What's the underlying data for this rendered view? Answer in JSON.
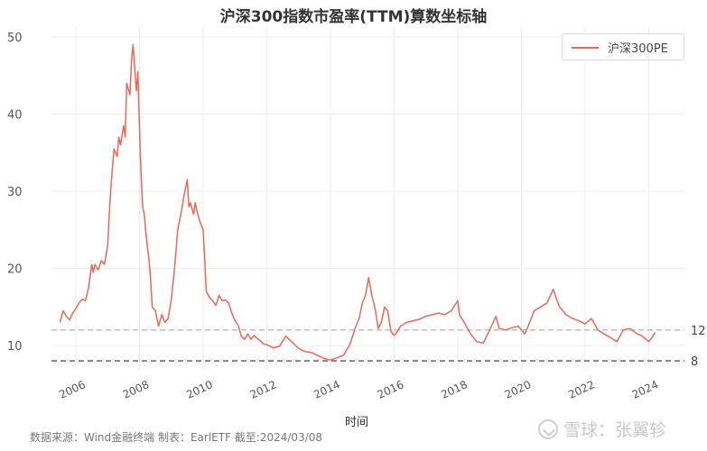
{
  "title": "沪深300指数市盈率(TTM)算数坐标轴",
  "legend": {
    "label": "沪深300PE",
    "color": "#e8695a"
  },
  "footer": "数据来源：Wind金融终端 制表：EarlETF 截至:2024/03/08",
  "watermark": "雪球：张翼轸",
  "chart_data": {
    "type": "line",
    "title": "沪深300指数市盈率(TTM)算数坐标轴",
    "xlabel": "时间",
    "ylabel": "",
    "ylim": [
      6.8,
      51
    ],
    "xlim": [
      2005.3,
      2025.2
    ],
    "yticks": [
      10,
      20,
      30,
      40,
      50
    ],
    "xticks": [
      "2006",
      "2008",
      "2010",
      "2012",
      "2014",
      "2016",
      "2018",
      "2020",
      "2022",
      "2024"
    ],
    "grid": true,
    "legend_position": "upper right",
    "reference_lines": [
      {
        "value": 12,
        "label": "12",
        "style": "dashed",
        "color": "#b0b0b0"
      },
      {
        "value": 8,
        "label": "8",
        "style": "dashed",
        "color": "#707070"
      }
    ],
    "series": [
      {
        "name": "沪深300PE",
        "color": "#e8695a",
        "x": [
          2005.5,
          2005.6,
          2005.7,
          2005.8,
          2005.9,
          2006.0,
          2006.1,
          2006.2,
          2006.3,
          2006.4,
          2006.5,
          2006.55,
          2006.6,
          2006.7,
          2006.8,
          2006.9,
          2007.0,
          2007.05,
          2007.1,
          2007.15,
          2007.2,
          2007.3,
          2007.35,
          2007.4,
          2007.5,
          2007.55,
          2007.6,
          2007.7,
          2007.75,
          2007.8,
          2007.85,
          2007.9,
          2007.95,
          2008.0,
          2008.05,
          2008.1,
          2008.15,
          2008.2,
          2008.3,
          2008.35,
          2008.4,
          2008.5,
          2008.6,
          2008.7,
          2008.8,
          2008.9,
          2009.0,
          2009.1,
          2009.2,
          2009.3,
          2009.4,
          2009.5,
          2009.55,
          2009.6,
          2009.7,
          2009.75,
          2009.8,
          2009.9,
          2010.0,
          2010.1,
          2010.2,
          2010.3,
          2010.4,
          2010.5,
          2010.6,
          2010.7,
          2010.8,
          2010.9,
          2011.0,
          2011.1,
          2011.2,
          2011.3,
          2011.4,
          2011.5,
          2011.6,
          2011.7,
          2011.8,
          2011.9,
          2012.0,
          2012.2,
          2012.4,
          2012.6,
          2012.8,
          2013.0,
          2013.2,
          2013.4,
          2013.6,
          2013.8,
          2014.0,
          2014.2,
          2014.4,
          2014.6,
          2014.8,
          2014.9,
          2015.0,
          2015.1,
          2015.2,
          2015.3,
          2015.4,
          2015.45,
          2015.5,
          2015.6,
          2015.7,
          2015.8,
          2015.9,
          2016.0,
          2016.1,
          2016.2,
          2016.4,
          2016.6,
          2016.8,
          2017.0,
          2017.2,
          2017.4,
          2017.6,
          2017.8,
          2018.0,
          2018.05,
          2018.2,
          2018.4,
          2018.6,
          2018.8,
          2019.0,
          2019.2,
          2019.3,
          2019.5,
          2019.7,
          2019.9,
          2020.1,
          2020.2,
          2020.4,
          2020.6,
          2020.8,
          2021.0,
          2021.1,
          2021.2,
          2021.4,
          2021.6,
          2021.8,
          2022.0,
          2022.2,
          2022.4,
          2022.6,
          2022.8,
          2023.0,
          2023.2,
          2023.4,
          2023.6,
          2023.8,
          2024.0,
          2024.1,
          2024.2
        ],
        "values": [
          13.0,
          14.5,
          13.8,
          13.3,
          14.2,
          14.8,
          15.5,
          16.0,
          15.8,
          17.5,
          20.5,
          19.5,
          20.5,
          19.8,
          21.0,
          20.5,
          23.0,
          27.0,
          30.5,
          33.0,
          35.5,
          34.5,
          37.0,
          36.0,
          38.5,
          37.0,
          44.0,
          42.5,
          47.0,
          49.0,
          46.0,
          43.0,
          45.5,
          38.0,
          32.0,
          28.0,
          27.0,
          24.5,
          21.0,
          18.5,
          15.0,
          14.5,
          12.5,
          14.0,
          13.0,
          13.5,
          16.0,
          20.0,
          25.0,
          27.0,
          29.5,
          31.5,
          28.0,
          28.5,
          27.0,
          28.5,
          27.5,
          26.0,
          25.0,
          17.0,
          16.2,
          15.8,
          15.2,
          16.5,
          15.8,
          15.9,
          15.5,
          14.2,
          13.2,
          12.6,
          11.2,
          10.8,
          11.5,
          10.8,
          11.3,
          10.9,
          10.6,
          10.2,
          10.1,
          9.7,
          9.9,
          11.2,
          10.4,
          9.6,
          9.2,
          9.1,
          8.7,
          8.3,
          8.1,
          8.4,
          8.7,
          10.0,
          12.5,
          13.5,
          15.5,
          16.5,
          18.8,
          16.5,
          14.8,
          13.5,
          12.2,
          13.0,
          15.0,
          14.5,
          11.8,
          11.3,
          11.8,
          12.5,
          13.0,
          13.2,
          13.4,
          13.8,
          14.0,
          14.2,
          14.0,
          14.5,
          15.8,
          14.0,
          13.0,
          11.5,
          10.5,
          10.3,
          12.0,
          13.8,
          12.2,
          12.0,
          12.3,
          12.5,
          11.5,
          12.4,
          14.5,
          15.0,
          15.5,
          17.3,
          16.0,
          15.0,
          14.0,
          13.5,
          13.2,
          12.8,
          13.5,
          12.0,
          11.5,
          11.0,
          10.5,
          12.0,
          12.2,
          11.6,
          11.2,
          10.5,
          11.0,
          11.7
        ]
      }
    ]
  }
}
